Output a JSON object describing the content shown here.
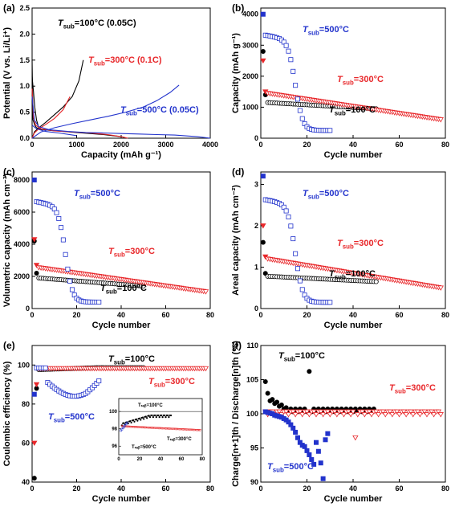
{
  "colors": {
    "black": "#000000",
    "red": "#e8272a",
    "blue": "#2233cc"
  },
  "chart_data": [
    {
      "panel": "(a)",
      "type": "line",
      "ylabel": "Potential (V vs. Li/Li⁺)",
      "xlabel": "Capacity (mAh g⁻¹)",
      "xlim": [
        0,
        4000
      ],
      "ylim": [
        0,
        2.5
      ],
      "xticks": [
        "0",
        "1000",
        "2000",
        "3000",
        "4000"
      ],
      "yticks": [
        "0.0",
        "0.5",
        "1.0",
        "1.5",
        "2.0",
        "2.5"
      ],
      "annotations": [
        {
          "text": "T",
          "sub": "sub",
          "rest": "=100°C (0.05C)",
          "color": "black"
        },
        {
          "text": "T",
          "sub": "sub",
          "rest": "=300°C (0.1C)",
          "color": "red"
        },
        {
          "text": "T",
          "sub": "sub",
          "rest": "=500°C (0.05C)",
          "color": "blue"
        }
      ],
      "series": [
        {
          "color": "black",
          "curves": [
            {
              "x": [
                0,
                20,
                60,
                100,
                200,
                400,
                700,
                1000,
                1300,
                1600,
                1900,
                2050,
                2100
              ],
              "y": [
                1.5,
                0.35,
                0.25,
                0.2,
                0.17,
                0.15,
                0.13,
                0.11,
                0.09,
                0.07,
                0.04,
                0.02,
                0.0
              ]
            },
            {
              "x": [
                0,
                50,
                150,
                300,
                500,
                700,
                900,
                1050,
                1150
              ],
              "y": [
                0.0,
                0.12,
                0.2,
                0.3,
                0.45,
                0.6,
                0.8,
                1.1,
                1.5
              ]
            },
            {
              "x": [
                0,
                30,
                60,
                100,
                150
              ],
              "y": [
                1.18,
                0.9,
                0.6,
                0.35,
                0.2
              ]
            }
          ]
        },
        {
          "color": "red",
          "curves": [
            {
              "x": [
                0,
                30,
                80,
                200,
                500,
                900,
                1300,
                1700,
                2000,
                2150
              ],
              "y": [
                0.95,
                0.4,
                0.25,
                0.18,
                0.14,
                0.12,
                0.1,
                0.07,
                0.03,
                0.0
              ]
            },
            {
              "x": [
                0,
                50,
                150,
                300,
                500,
                700,
                850
              ],
              "y": [
                0.0,
                0.1,
                0.18,
                0.26,
                0.38,
                0.55,
                0.8
              ]
            }
          ]
        },
        {
          "color": "blue",
          "curves": [
            {
              "x": [
                0,
                50,
                150,
                400,
                800,
                1200,
                1600,
                2000,
                2400,
                2800,
                3200,
                3700,
                4000
              ],
              "y": [
                0.8,
                0.35,
                0.22,
                0.16,
                0.13,
                0.11,
                0.1,
                0.09,
                0.08,
                0.07,
                0.06,
                0.03,
                0.0
              ]
            },
            {
              "x": [
                0,
                200,
                500,
                900,
                1300,
                1700,
                2100,
                2500,
                2800,
                3100,
                3300
              ],
              "y": [
                0.0,
                0.12,
                0.2,
                0.28,
                0.35,
                0.42,
                0.5,
                0.6,
                0.72,
                0.88,
                1.02
              ]
            },
            {
              "x": [
                0,
                100,
                300,
                600,
                1000
              ],
              "y": [
                0.25,
                0.18,
                0.13,
                0.1,
                0.05
              ]
            }
          ]
        }
      ]
    },
    {
      "panel": "(b)",
      "type": "scatter",
      "ylabel": "Capacity (mAh g⁻¹)",
      "xlabel": "Cycle number",
      "xlim": [
        0,
        80
      ],
      "ylim": [
        0,
        4200
      ],
      "xticks": [
        "0",
        "20",
        "40",
        "60",
        "80"
      ],
      "yticks": [
        "0",
        "1000",
        "2000",
        "3000",
        "4000"
      ],
      "annotations": [
        {
          "text": "T",
          "sub": "sub",
          "rest": "=500°C",
          "color": "blue"
        },
        {
          "text": "T",
          "sub": "sub",
          "rest": "=300°C",
          "color": "red"
        },
        {
          "text": "T",
          "sub": "sub",
          "rest": "=100°C",
          "color": "black"
        }
      ],
      "series": [
        {
          "color": "black",
          "first": 2800,
          "second": 1400,
          "start": 1150,
          "end": 950,
          "n": 50
        },
        {
          "color": "red",
          "first": 2500,
          "second": 1500,
          "start": 1450,
          "end": 600,
          "n": 78
        },
        {
          "color": "blue",
          "first": 4000,
          "plateau": 3350,
          "drop": 15,
          "n": 30,
          "low": 250
        }
      ]
    },
    {
      "panel": "(c)",
      "type": "scatter",
      "ylabel": "Volumetric capacity (mAh cm⁻³)",
      "xlabel": "Cycle number",
      "xlim": [
        0,
        80
      ],
      "ylim": [
        0,
        8500
      ],
      "xticks": [
        "0",
        "20",
        "40",
        "60",
        "80"
      ],
      "yticks": [
        "0",
        "2000",
        "4000",
        "6000",
        "8000"
      ],
      "annotations": [
        {
          "text": "T",
          "sub": "sub",
          "rest": "=500°C",
          "color": "blue"
        },
        {
          "text": "T",
          "sub": "sub",
          "rest": "=300°C",
          "color": "red"
        },
        {
          "text": "T",
          "sub": "sub",
          "rest": "=100°C",
          "color": "black"
        }
      ],
      "series": [
        {
          "color": "black",
          "first": 4200,
          "second": 2200,
          "start": 1900,
          "end": 1400,
          "n": 50
        },
        {
          "color": "red",
          "first": 4300,
          "second": 2700,
          "start": 2550,
          "end": 1050,
          "n": 78
        },
        {
          "color": "blue",
          "first": 8000,
          "plateau": 6700,
          "drop": 15,
          "n": 30,
          "low": 400
        }
      ]
    },
    {
      "panel": "(d)",
      "type": "scatter",
      "ylabel": "Areal capacity (mAh cm⁻²)",
      "xlabel": "Cycle number",
      "xlim": [
        0,
        80
      ],
      "ylim": [
        0,
        3.3
      ],
      "xticks": [
        "0",
        "20",
        "40",
        "60",
        "80"
      ],
      "yticks": [
        "0",
        "1",
        "2",
        "3"
      ],
      "annotations": [
        {
          "text": "T",
          "sub": "sub",
          "rest": "=500°C",
          "color": "blue"
        },
        {
          "text": "T",
          "sub": "sub",
          "rest": "=300°C",
          "color": "red"
        },
        {
          "text": "T",
          "sub": "sub",
          "rest": "=100°C",
          "color": "black"
        }
      ],
      "series": [
        {
          "color": "black",
          "first": 1.6,
          "second": 0.85,
          "start": 0.78,
          "end": 0.65,
          "n": 50
        },
        {
          "color": "red",
          "first": 2.0,
          "second": 1.25,
          "start": 1.2,
          "end": 0.5,
          "n": 78
        },
        {
          "color": "blue",
          "first": 3.2,
          "plateau": 2.65,
          "drop": 15,
          "n": 30,
          "low": 0.15
        }
      ]
    },
    {
      "panel": "(e)",
      "type": "scatter",
      "ylabel": "Coulombic efficiency (%)",
      "xlabel": "Cycle number",
      "xlim": [
        0,
        80
      ],
      "ylim": [
        40,
        110
      ],
      "xticks": [
        "0",
        "20",
        "40",
        "60",
        "80"
      ],
      "yticks": [
        "40",
        "60",
        "80",
        "100"
      ],
      "annotations": [
        {
          "text": "T",
          "sub": "sub",
          "rest": "=100°C",
          "color": "black"
        },
        {
          "text": "T",
          "sub": "sub",
          "rest": "=300°C",
          "color": "red"
        },
        {
          "text": "T",
          "sub": "sub",
          "rest": "=500°C",
          "color": "blue"
        }
      ],
      "inset": {
        "xticks": [
          "0",
          "20",
          "40",
          "60",
          "80"
        ],
        "yticks": [
          "96",
          "98",
          "100"
        ],
        "labels": [
          "Tₛᵤᵦ=100°C",
          "Tₛᵤᵦ=300°C",
          "Tₛᵤᵦ=500°C"
        ]
      }
    },
    {
      "panel": "(f)",
      "type": "scatter",
      "ylabel": "Charge[n+1]th / Discharge[n]th (%)",
      "xlabel": "Cycle number",
      "xlim": [
        0,
        80
      ],
      "ylim": [
        90,
        110
      ],
      "xticks": [
        "0",
        "20",
        "40",
        "60",
        "80"
      ],
      "yticks": [
        "90",
        "95",
        "100",
        "105",
        "110"
      ],
      "annotations": [
        {
          "text": "T",
          "sub": "sub",
          "rest": "=100°C",
          "color": "black"
        },
        {
          "text": "T",
          "sub": "sub",
          "rest": "=300°C",
          "color": "red"
        },
        {
          "text": "T",
          "sub": "sub",
          "rest": "=500°C",
          "color": "blue"
        }
      ]
    }
  ]
}
